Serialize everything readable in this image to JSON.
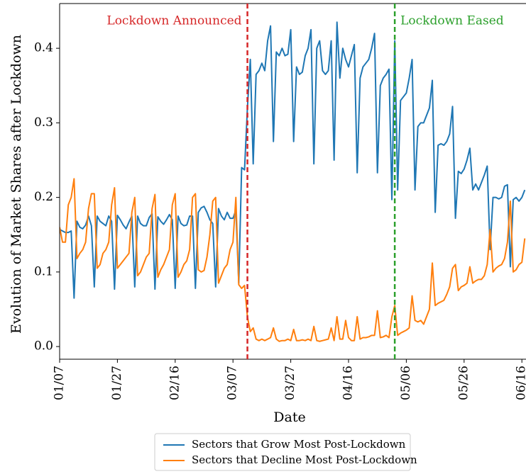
{
  "chart_data": {
    "type": "line",
    "y_label": "Evolution of Market Shares after Lockdown",
    "x_label": "Date",
    "categories": [
      "01/07",
      null,
      null,
      null,
      null,
      null,
      null,
      null,
      null,
      null,
      null,
      null,
      null,
      null,
      null,
      null,
      null,
      null,
      null,
      null,
      "01/27",
      null,
      null,
      null,
      null,
      null,
      null,
      null,
      null,
      null,
      null,
      null,
      null,
      null,
      null,
      null,
      null,
      null,
      null,
      null,
      "02/16",
      null,
      null,
      null,
      null,
      null,
      null,
      null,
      null,
      null,
      null,
      null,
      null,
      null,
      null,
      null,
      null,
      null,
      null,
      null,
      "03/07",
      null,
      null,
      null,
      null,
      null,
      null,
      null,
      null,
      null,
      null,
      null,
      null,
      null,
      null,
      null,
      null,
      null,
      null,
      null,
      "03/27",
      null,
      null,
      null,
      null,
      null,
      null,
      null,
      null,
      null,
      null,
      null,
      null,
      null,
      null,
      null,
      null,
      null,
      null,
      null,
      "04/16",
      null,
      null,
      null,
      null,
      null,
      null,
      null,
      null,
      null,
      null,
      null,
      null,
      null,
      null,
      null,
      null,
      null,
      null,
      null,
      "05/06",
      null,
      null,
      null,
      null,
      null,
      null,
      null,
      null,
      null,
      null,
      null,
      null,
      null,
      null,
      null,
      null,
      null,
      null,
      null,
      "05/26",
      null,
      null,
      null,
      null,
      null,
      null,
      null,
      null,
      null,
      null,
      null,
      null,
      null,
      null,
      null,
      null,
      null,
      null,
      null,
      "06/16",
      null
    ],
    "series": [
      {
        "name": "Sectors that Grow Most Post-Lockdown",
        "color": "#1f77b4",
        "values": [
          0.157,
          0.155,
          0.153,
          0.153,
          0.155,
          0.065,
          0.168,
          0.16,
          0.158,
          0.163,
          0.175,
          0.162,
          0.08,
          0.175,
          0.168,
          0.165,
          0.162,
          0.175,
          0.168,
          0.077,
          0.176,
          0.17,
          0.163,
          0.158,
          0.167,
          0.175,
          0.08,
          0.175,
          0.165,
          0.162,
          0.162,
          0.173,
          0.178,
          0.077,
          0.174,
          0.168,
          0.164,
          0.17,
          0.177,
          0.17,
          0.078,
          0.175,
          0.165,
          0.162,
          0.163,
          0.175,
          0.175,
          0.078,
          0.18,
          0.186,
          0.188,
          0.18,
          0.17,
          0.165,
          0.08,
          0.185,
          0.175,
          0.17,
          0.18,
          0.172,
          0.172,
          0.183,
          0.085,
          0.24,
          0.237,
          0.32,
          0.385,
          0.245,
          0.365,
          0.37,
          0.38,
          0.37,
          0.41,
          0.43,
          0.275,
          0.395,
          0.39,
          0.4,
          0.39,
          0.392,
          0.425,
          0.275,
          0.375,
          0.365,
          0.368,
          0.39,
          0.4,
          0.425,
          0.245,
          0.4,
          0.41,
          0.37,
          0.365,
          0.37,
          0.41,
          0.25,
          0.435,
          0.36,
          0.4,
          0.385,
          0.375,
          0.39,
          0.405,
          0.233,
          0.36,
          0.375,
          0.38,
          0.385,
          0.4,
          0.42,
          0.233,
          0.35,
          0.36,
          0.365,
          0.372,
          0.197,
          0.41,
          0.21,
          0.33,
          0.335,
          0.34,
          0.36,
          0.385,
          0.21,
          0.295,
          0.3,
          0.3,
          0.31,
          0.32,
          0.357,
          0.18,
          0.27,
          0.272,
          0.27,
          0.275,
          0.285,
          0.322,
          0.172,
          0.235,
          0.232,
          0.238,
          0.25,
          0.266,
          0.21,
          0.218,
          0.21,
          0.22,
          0.23,
          0.242,
          0.13,
          0.2,
          0.2,
          0.198,
          0.2,
          0.215,
          0.217,
          0.107,
          0.197,
          0.2,
          0.195,
          0.2,
          0.21
        ]
      },
      {
        "name": "Sectors that Decline Most Post-Lockdown",
        "color": "#ff7f0e",
        "values": [
          0.16,
          0.14,
          0.14,
          0.19,
          0.2,
          0.225,
          0.118,
          0.125,
          0.13,
          0.14,
          0.185,
          0.205,
          0.205,
          0.105,
          0.11,
          0.125,
          0.13,
          0.14,
          0.19,
          0.213,
          0.105,
          0.11,
          0.115,
          0.12,
          0.125,
          0.18,
          0.2,
          0.095,
          0.1,
          0.11,
          0.12,
          0.125,
          0.185,
          0.204,
          0.093,
          0.103,
          0.11,
          0.12,
          0.13,
          0.19,
          0.205,
          0.093,
          0.1,
          0.11,
          0.115,
          0.13,
          0.2,
          0.205,
          0.103,
          0.1,
          0.102,
          0.12,
          0.15,
          0.195,
          0.2,
          0.085,
          0.095,
          0.105,
          0.11,
          0.13,
          0.14,
          0.2,
          0.083,
          0.078,
          0.082,
          0.04,
          0.02,
          0.025,
          0.01,
          0.008,
          0.01,
          0.008,
          0.01,
          0.012,
          0.025,
          0.01,
          0.007,
          0.008,
          0.008,
          0.01,
          0.008,
          0.023,
          0.008,
          0.008,
          0.009,
          0.008,
          0.01,
          0.008,
          0.027,
          0.008,
          0.007,
          0.008,
          0.009,
          0.01,
          0.025,
          0.008,
          0.04,
          0.01,
          0.01,
          0.035,
          0.012,
          0.008,
          0.008,
          0.04,
          0.01,
          0.012,
          0.012,
          0.013,
          0.015,
          0.015,
          0.048,
          0.012,
          0.013,
          0.015,
          0.012,
          0.04,
          0.055,
          0.015,
          0.018,
          0.02,
          0.022,
          0.025,
          0.068,
          0.035,
          0.033,
          0.035,
          0.03,
          0.04,
          0.05,
          0.112,
          0.055,
          0.058,
          0.06,
          0.062,
          0.07,
          0.08,
          0.105,
          0.11,
          0.075,
          0.08,
          0.082,
          0.085,
          0.107,
          0.085,
          0.088,
          0.09,
          0.09,
          0.095,
          0.11,
          0.157,
          0.1,
          0.105,
          0.108,
          0.11,
          0.118,
          0.14,
          0.195,
          0.1,
          0.103,
          0.11,
          0.113,
          0.145
        ]
      }
    ],
    "ylim": [
      -0.017,
      0.46
    ],
    "yticks": [
      {
        "value": 0,
        "label": "0.0"
      },
      0.1,
      0.2,
      0.3,
      0.4
    ],
    "annotations": [
      {
        "text": "Lockdown Announced",
        "x": 65,
        "color": "#d62728"
      },
      {
        "text": "Lockdown Eased",
        "x": 116,
        "color": "#2ca02c"
      }
    ]
  }
}
